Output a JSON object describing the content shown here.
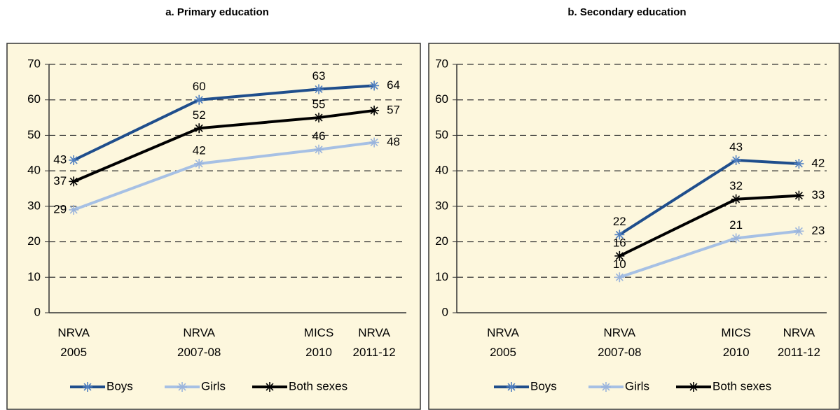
{
  "chart_data": [
    {
      "type": "line",
      "title": "a. Primary education",
      "categories": [
        "NRVA 2005",
        "NRVA 2007-08",
        "MICS 2010",
        "NRVA 2011-12"
      ],
      "series": [
        {
          "name": "Boys",
          "color": "#1f4e8c",
          "values": [
            43,
            60,
            63,
            64
          ]
        },
        {
          "name": "Girls",
          "color": "#a6c0e4",
          "values": [
            29,
            42,
            46,
            48
          ]
        },
        {
          "name": "Both sexes",
          "color": "#000000",
          "values": [
            37,
            52,
            55,
            57
          ]
        }
      ],
      "ylim": [
        0,
        70
      ],
      "yticks": [
        0,
        10,
        20,
        30,
        40,
        50,
        60,
        70
      ],
      "grid": true,
      "legend": "bottom"
    },
    {
      "type": "line",
      "title": "b. Secondary education",
      "categories": [
        "NRVA 2005",
        "NRVA 2007-08",
        "MICS 2010",
        "NRVA 2011-12"
      ],
      "series": [
        {
          "name": "Boys",
          "color": "#1f4e8c",
          "values": [
            null,
            22,
            43,
            42
          ]
        },
        {
          "name": "Girls",
          "color": "#a6c0e4",
          "values": [
            null,
            10,
            21,
            23
          ]
        },
        {
          "name": "Both sexes",
          "color": "#000000",
          "values": [
            null,
            16,
            32,
            33
          ]
        }
      ],
      "ylim": [
        0,
        70
      ],
      "yticks": [
        0,
        10,
        20,
        30,
        40,
        50,
        60,
        70
      ],
      "grid": true,
      "legend": "bottom"
    }
  ]
}
